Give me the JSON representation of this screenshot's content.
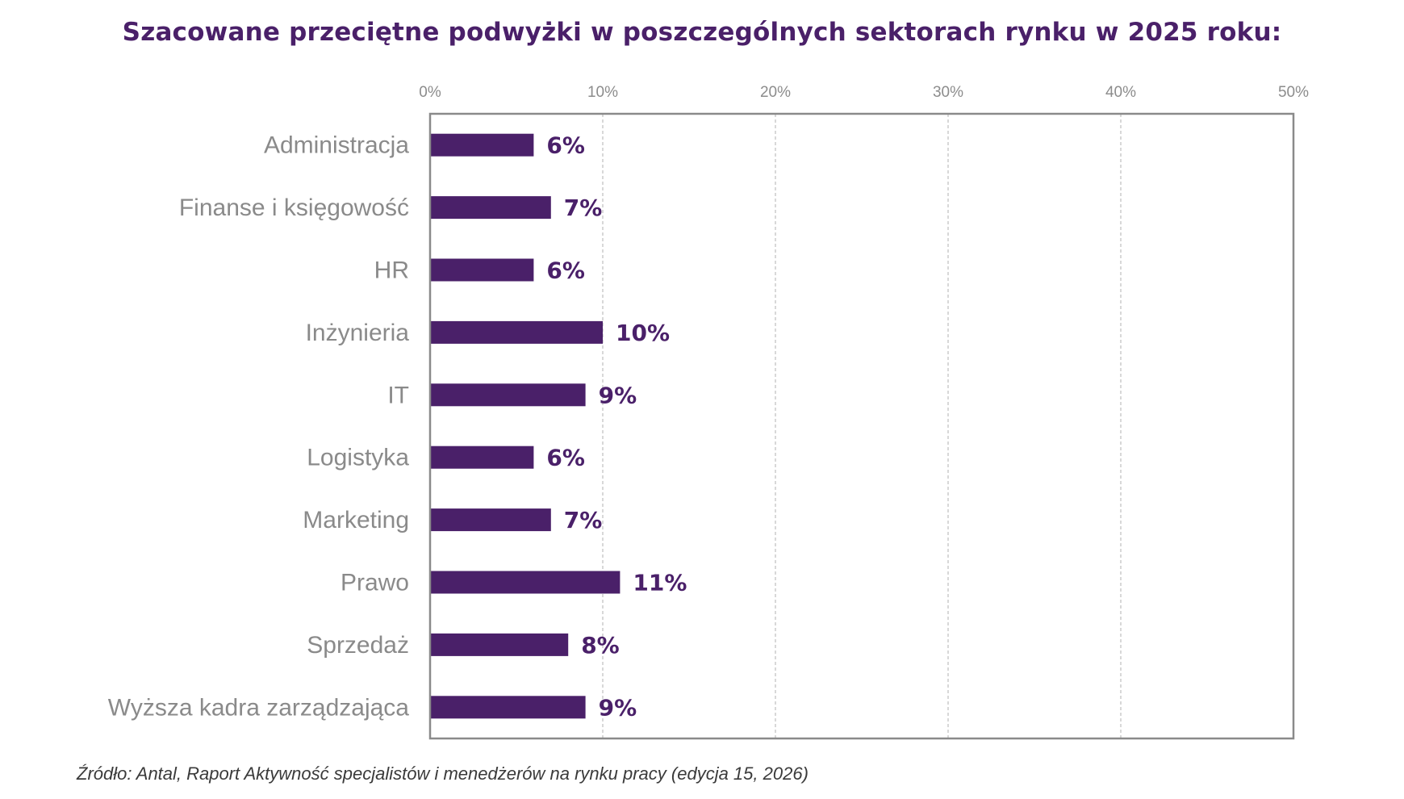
{
  "chart_data": {
    "type": "bar",
    "orientation": "horizontal",
    "title": "Szacowane przeciętne podwyżki w poszczególnych sektorach rynku w 2025 roku:",
    "categories": [
      "Administracja",
      "Finanse i księgowość",
      "HR",
      "Inżynieria",
      "IT",
      "Logistyka",
      "Marketing",
      "Prawo",
      "Sprzedaż",
      "Wyższa kadra zarządzająca"
    ],
    "values": [
      6,
      7,
      6,
      10,
      9,
      6,
      7,
      11,
      8,
      9
    ],
    "value_labels": [
      "6%",
      "7%",
      "6%",
      "10%",
      "9%",
      "6%",
      "7%",
      "11%",
      "8%",
      "9%"
    ],
    "xlim": [
      0,
      50
    ],
    "x_ticks": [
      "0%",
      "10%",
      "20%",
      "30%",
      "40%",
      "50%"
    ],
    "x_tick_values": [
      0,
      10,
      20,
      30,
      40,
      50
    ],
    "axis_position": "top",
    "grid": true,
    "legend": "none",
    "xlabel": "",
    "ylabel": "",
    "source": "Źródło: Antal, Raport Aktywność specjalistów i menedżerów na rynku pracy (edycja 15, 2026)",
    "colors": {
      "bar": "#4a2069",
      "title": "#4a2069",
      "value_label": "#4a2069",
      "category_label": "#8a8a8a",
      "tick_label": "#8c8c8c",
      "grid": "#bdbdbd",
      "frame": "#8a8a8a"
    }
  }
}
